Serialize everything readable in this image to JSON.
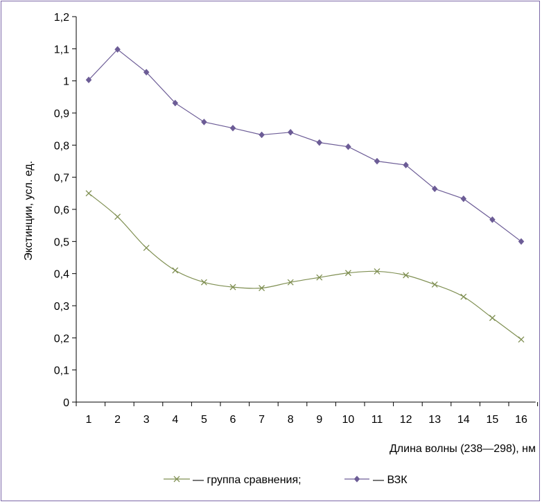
{
  "chart_data": {
    "type": "line",
    "title": "",
    "xlabel": "Длина волны (238—298), нм",
    "ylabel": "Экстинции, усл. ед.",
    "categories": [
      "1",
      "2",
      "3",
      "4",
      "5",
      "6",
      "7",
      "8",
      "9",
      "10",
      "11",
      "12",
      "13",
      "14",
      "15",
      "16"
    ],
    "ylim": [
      0,
      1.2
    ],
    "yticks": [
      "0",
      "0,1",
      "0,2",
      "0,3",
      "0,4",
      "0,5",
      "0,6",
      "0,7",
      "0,8",
      "0,9",
      "1",
      "1,1",
      "1,2"
    ],
    "grid": false,
    "legend_position": "bottom",
    "series": [
      {
        "name": "— группа сравнения;",
        "color": "#7f8f52",
        "marker": "x-mark",
        "smooth": true,
        "values": [
          0.65,
          0.577,
          0.48,
          0.41,
          0.373,
          0.358,
          0.355,
          0.373,
          0.388,
          0.402,
          0.407,
          0.395,
          0.366,
          0.328,
          0.262,
          0.195
        ]
      },
      {
        "name": "— ВЗК",
        "color": "#6c5c96",
        "marker": "diamond",
        "smooth": false,
        "values": [
          1.003,
          1.098,
          1.027,
          0.931,
          0.872,
          0.853,
          0.832,
          0.84,
          0.808,
          0.795,
          0.75,
          0.738,
          0.664,
          0.633,
          0.568,
          0.5
        ]
      }
    ]
  }
}
